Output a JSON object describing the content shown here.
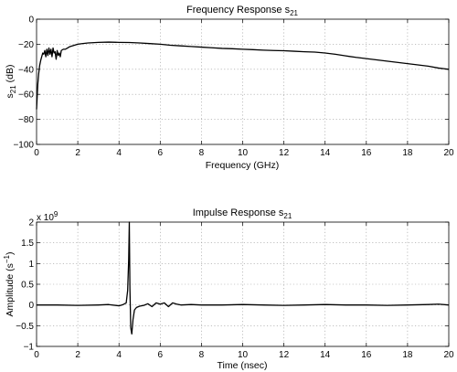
{
  "chart_data": [
    {
      "type": "line",
      "title": "Frequency Response s",
      "title_sub": "21",
      "xlabel": "Frequency (GHz)",
      "ylabel": "s",
      "ylabel_sub": "21",
      "ylabel_unit": " (dB)",
      "xlim": [
        0,
        20
      ],
      "ylim": [
        -100,
        0
      ],
      "xticks": [
        0,
        2,
        4,
        6,
        8,
        10,
        12,
        14,
        16,
        18,
        20
      ],
      "yticks": [
        0,
        -20,
        -40,
        -60,
        -80,
        -100
      ],
      "xtick_labels": [
        "0",
        "2",
        "4",
        "6",
        "8",
        "10",
        "12",
        "14",
        "16",
        "18",
        "20"
      ],
      "ytick_labels": [
        "0",
        "−20",
        "−40",
        "−60",
        "−80",
        "−100"
      ],
      "grid": true,
      "series": [
        {
          "x": [
            0,
            0.03,
            0.06,
            0.1,
            0.15,
            0.2,
            0.25,
            0.3,
            0.35,
            0.4,
            0.45,
            0.5,
            0.55,
            0.6,
            0.65,
            0.7,
            0.75,
            0.8,
            0.85,
            0.9,
            0.95,
            1.0,
            1.05,
            1.1,
            1.15,
            1.2,
            1.3,
            1.4,
            1.5,
            1.6,
            1.8,
            2.0,
            2.2,
            2.5,
            3.0,
            3.5,
            4.0,
            4.5,
            5.0,
            5.5,
            6.0,
            6.5,
            7.0,
            7.5,
            8.0,
            8.5,
            9.0,
            9.5,
            10.0,
            10.5,
            11.0,
            11.5,
            12.0,
            12.5,
            13.0,
            13.5,
            14.0,
            14.5,
            15.0,
            15.5,
            16.0,
            16.5,
            17.0,
            17.5,
            18.0,
            18.5,
            19.0,
            19.5,
            19.8,
            20.0
          ],
          "y": [
            -72,
            -62,
            -52,
            -44,
            -37,
            -33,
            -30,
            -27,
            -28,
            -25,
            -30,
            -24,
            -29,
            -23,
            -28,
            -24,
            -30,
            -23,
            -27,
            -26,
            -32,
            -25,
            -29,
            -27,
            -30,
            -25,
            -24,
            -24,
            -23,
            -22,
            -21,
            -20,
            -19.5,
            -19,
            -18.5,
            -18.3,
            -18.5,
            -18.6,
            -19,
            -19.5,
            -20,
            -20.8,
            -21.3,
            -21.8,
            -22.3,
            -22.8,
            -23.3,
            -23.6,
            -24,
            -24.3,
            -24.7,
            -25,
            -25.2,
            -25.6,
            -26,
            -26.3,
            -27,
            -28,
            -29.3,
            -30.5,
            -31.5,
            -32.5,
            -33.5,
            -34.5,
            -35.5,
            -36.5,
            -37.5,
            -39,
            -39.6,
            -40
          ]
        }
      ]
    },
    {
      "type": "line",
      "title": "Impulse Response s",
      "title_sub": "21",
      "xlabel": "Time (nsec)",
      "ylabel": "Amplitude (s",
      "ylabel_sup": "−1",
      "ylabel_close": ")",
      "scale_label": "x 10",
      "scale_exponent": "9",
      "xlim": [
        0,
        20
      ],
      "ylim": [
        -1,
        2
      ],
      "xticks": [
        0,
        2,
        4,
        6,
        8,
        10,
        12,
        14,
        16,
        18,
        20
      ],
      "yticks": [
        2,
        1.5,
        1,
        0.5,
        0,
        -0.5,
        -1
      ],
      "xtick_labels": [
        "0",
        "2",
        "4",
        "6",
        "8",
        "10",
        "12",
        "14",
        "16",
        "18",
        "20"
      ],
      "ytick_labels": [
        "2",
        "1.5",
        "1",
        "0.5",
        "0",
        "−0.5",
        "−1"
      ],
      "grid": true,
      "series": [
        {
          "x": [
            0,
            1,
            2,
            3,
            3.5,
            4.0,
            4.2,
            4.35,
            4.42,
            4.47,
            4.5,
            4.53,
            4.57,
            4.62,
            4.68,
            4.75,
            4.85,
            5.0,
            5.2,
            5.4,
            5.6,
            5.8,
            6.0,
            6.2,
            6.4,
            6.6,
            6.8,
            7.0,
            7.5,
            8,
            9,
            10,
            11,
            12,
            13,
            14,
            15,
            16,
            17,
            18,
            19,
            19.5,
            20
          ],
          "y": [
            0,
            0,
            -0.01,
            0,
            0.01,
            -0.02,
            0.01,
            0.05,
            0.35,
            1.1,
            2.0,
            0.4,
            -0.55,
            -0.7,
            -0.35,
            -0.12,
            -0.06,
            -0.03,
            -0.01,
            0.03,
            -0.04,
            0.05,
            0.02,
            0.05,
            -0.04,
            0.05,
            0.02,
            0.0,
            0.01,
            0,
            0,
            0.01,
            0,
            -0.01,
            0,
            0.01,
            0,
            0,
            -0.01,
            0,
            0.01,
            0.02,
            0
          ]
        }
      ]
    }
  ]
}
